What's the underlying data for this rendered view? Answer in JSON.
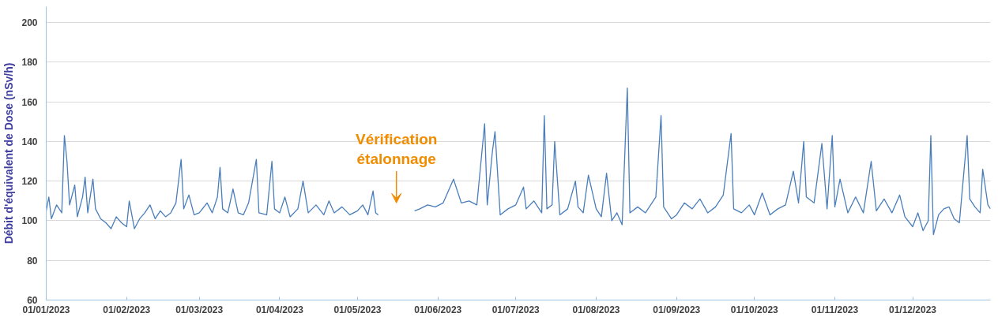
{
  "chart_data": {
    "type": "line",
    "ylabel": "Débit d'équivalent de Dose (nSv/h)",
    "x": [
      "2023-01-01",
      "2023-01-02",
      "2023-01-03",
      "2023-01-05",
      "2023-01-07",
      "2023-01-08",
      "2023-01-09",
      "2023-01-10",
      "2023-01-12",
      "2023-01-13",
      "2023-01-15",
      "2023-01-16",
      "2023-01-17",
      "2023-01-19",
      "2023-01-20",
      "2023-01-22",
      "2023-01-24",
      "2023-01-26",
      "2023-01-28",
      "2023-01-30",
      "2023-02-01",
      "2023-02-02",
      "2023-02-04",
      "2023-02-06",
      "2023-02-08",
      "2023-02-10",
      "2023-02-12",
      "2023-02-14",
      "2023-02-16",
      "2023-02-18",
      "2023-02-20",
      "2023-02-22",
      "2023-02-23",
      "2023-02-25",
      "2023-02-27",
      "2023-03-01",
      "2023-03-04",
      "2023-03-06",
      "2023-03-08",
      "2023-03-09",
      "2023-03-10",
      "2023-03-12",
      "2023-03-14",
      "2023-03-16",
      "2023-03-18",
      "2023-03-20",
      "2023-03-23",
      "2023-03-24",
      "2023-03-27",
      "2023-03-29",
      "2023-03-30",
      "2023-04-01",
      "2023-04-03",
      "2023-04-05",
      "2023-04-08",
      "2023-04-10",
      "2023-04-12",
      "2023-04-15",
      "2023-04-18",
      "2023-04-20",
      "2023-04-22",
      "2023-04-25",
      "2023-04-28",
      "2023-05-01",
      "2023-05-03",
      "2023-05-05",
      "2023-05-07",
      "2023-05-08",
      "2023-05-09",
      "2023-05-15",
      "2023-05-23",
      "2023-05-25",
      "2023-05-28",
      "2023-05-31",
      "2023-06-03",
      "2023-06-07",
      "2023-06-10",
      "2023-06-13",
      "2023-06-16",
      "2023-06-19",
      "2023-06-20",
      "2023-06-22",
      "2023-06-23",
      "2023-06-25",
      "2023-06-28",
      "2023-07-01",
      "2023-07-04",
      "2023-07-05",
      "2023-07-08",
      "2023-07-11",
      "2023-07-12",
      "2023-07-13",
      "2023-07-15",
      "2023-07-16",
      "2023-07-18",
      "2023-07-21",
      "2023-07-24",
      "2023-07-25",
      "2023-07-27",
      "2023-07-29",
      "2023-08-01",
      "2023-08-03",
      "2023-08-05",
      "2023-08-07",
      "2023-08-09",
      "2023-08-11",
      "2023-08-13",
      "2023-08-14",
      "2023-08-17",
      "2023-08-20",
      "2023-08-24",
      "2023-08-26",
      "2023-08-27",
      "2023-08-30",
      "2023-09-01",
      "2023-09-04",
      "2023-09-07",
      "2023-09-10",
      "2023-09-13",
      "2023-09-16",
      "2023-09-19",
      "2023-09-22",
      "2023-09-23",
      "2023-09-26",
      "2023-09-29",
      "2023-10-01",
      "2023-10-04",
      "2023-10-07",
      "2023-10-10",
      "2023-10-13",
      "2023-10-16",
      "2023-10-18",
      "2023-10-20",
      "2023-10-21",
      "2023-10-24",
      "2023-10-27",
      "2023-10-29",
      "2023-10-31",
      "2023-11-01",
      "2023-11-03",
      "2023-11-06",
      "2023-11-09",
      "2023-11-12",
      "2023-11-15",
      "2023-11-17",
      "2023-11-20",
      "2023-11-23",
      "2023-11-26",
      "2023-11-28",
      "2023-12-01",
      "2023-12-03",
      "2023-12-05",
      "2023-12-07",
      "2023-12-08",
      "2023-12-09",
      "2023-12-11",
      "2023-12-13",
      "2023-12-15",
      "2023-12-17",
      "2023-12-19",
      "2023-12-22",
      "2023-12-23",
      "2023-12-25",
      "2023-12-27",
      "2023-12-28",
      "2023-12-30",
      "2023-12-31"
    ],
    "series": [
      {
        "color": "#4a7ebb",
        "values": [
          105,
          112,
          101,
          108,
          104,
          143,
          130,
          108,
          118,
          102,
          112,
          122,
          104,
          121,
          106,
          101,
          99,
          96,
          102,
          99,
          97,
          110,
          96,
          101,
          104,
          108,
          101,
          105,
          102,
          104,
          109,
          131,
          106,
          113,
          103,
          104,
          109,
          104,
          112,
          127,
          106,
          104,
          116,
          104,
          103,
          109,
          131,
          104,
          103,
          130,
          106,
          104,
          112,
          102,
          106,
          120,
          104,
          108,
          103,
          110,
          104,
          107,
          103,
          105,
          108,
          103,
          115,
          104,
          103,
          null,
          105,
          106,
          108,
          107,
          109,
          121,
          109,
          110,
          108,
          149,
          108,
          135,
          145,
          103,
          106,
          108,
          117,
          106,
          110,
          104,
          153,
          106,
          108,
          140,
          103,
          106,
          120,
          107,
          104,
          123,
          106,
          102,
          124,
          100,
          104,
          98,
          167,
          104,
          107,
          104,
          112,
          153,
          107,
          101,
          103,
          109,
          106,
          111,
          104,
          107,
          113,
          144,
          106,
          104,
          108,
          103,
          114,
          103,
          106,
          108,
          125,
          109,
          140,
          112,
          109,
          139,
          106,
          143,
          107,
          121,
          104,
          112,
          104,
          130,
          105,
          111,
          104,
          113,
          102,
          97,
          104,
          95,
          100,
          143,
          93,
          103,
          106,
          107,
          101,
          99,
          143,
          111,
          107,
          104,
          126,
          108,
          106
        ]
      }
    ],
    "xlim": [
      "2023-01-01",
      "2023-12-31"
    ],
    "xticks": [
      {
        "value": "2023-01-01",
        "label": "01/01/2023"
      },
      {
        "value": "2023-02-01",
        "label": "01/02/2023"
      },
      {
        "value": "2023-03-01",
        "label": "01/03/2023"
      },
      {
        "value": "2023-04-01",
        "label": "01/04/2023"
      },
      {
        "value": "2023-05-01",
        "label": "01/05/2023"
      },
      {
        "value": "2023-06-01",
        "label": "01/06/2023"
      },
      {
        "value": "2023-07-01",
        "label": "01/07/2023"
      },
      {
        "value": "2023-08-01",
        "label": "01/08/2023"
      },
      {
        "value": "2023-09-01",
        "label": "01/09/2023"
      },
      {
        "value": "2023-10-01",
        "label": "01/10/2023"
      },
      {
        "value": "2023-11-01",
        "label": "01/11/2023"
      },
      {
        "value": "2023-12-01",
        "label": "01/12/2023"
      }
    ],
    "ylim": [
      60,
      208
    ],
    "yticks": [
      60,
      80,
      100,
      120,
      140,
      160,
      180,
      200
    ],
    "grid": "y",
    "marker": "none",
    "line_style": "solid",
    "annotations": [
      "Vérification\nétalonnage"
    ]
  }
}
